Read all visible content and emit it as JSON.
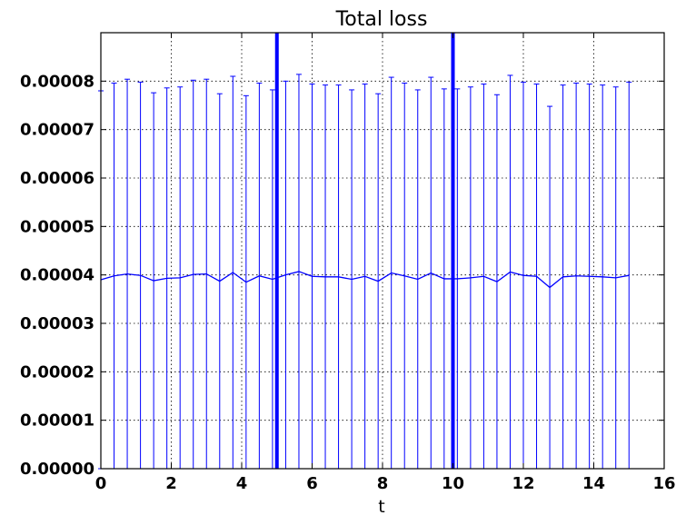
{
  "chart_data": {
    "type": "line",
    "title": "Total loss",
    "xlabel": "t",
    "ylabel": "",
    "xlim": [
      0,
      16
    ],
    "ylim": [
      0,
      9e-05
    ],
    "grid": true,
    "legend": "none",
    "x_ticks": [
      0,
      2,
      4,
      6,
      8,
      10,
      12,
      14,
      16
    ],
    "x_tick_labels": [
      "0",
      "2",
      "4",
      "6",
      "8",
      "10",
      "12",
      "14",
      "16"
    ],
    "y_ticks": [
      0,
      1e-05,
      2e-05,
      3e-05,
      4e-05,
      5e-05,
      6e-05,
      7e-05,
      8e-05
    ],
    "y_tick_labels": [
      "0.00000",
      "0.00001",
      "0.00002",
      "0.00003",
      "0.00004",
      "0.00005",
      "0.00006",
      "0.00007",
      "0.00008"
    ],
    "vertical_lines": [
      5.0,
      10.0
    ],
    "series": [
      {
        "color": "#0000ff",
        "x": [
          0.0,
          0.375,
          0.75,
          1.125,
          1.5,
          1.875,
          2.25,
          2.625,
          3.0,
          3.375,
          3.75,
          4.125,
          4.5,
          4.875,
          5.25,
          5.625,
          6.0,
          6.375,
          6.75,
          7.125,
          7.5,
          7.875,
          8.25,
          8.625,
          9.0,
          9.375,
          9.75,
          10.125,
          10.5,
          10.875,
          11.25,
          11.625,
          12.0,
          12.375,
          12.75,
          13.125,
          13.5,
          13.875,
          14.25,
          14.625,
          15.0
        ],
        "y": [
          3.9e-05,
          3.98e-05,
          4.02e-05,
          3.99e-05,
          3.88e-05,
          3.93e-05,
          3.94e-05,
          4.01e-05,
          4.02e-05,
          3.87e-05,
          4.05e-05,
          3.85e-05,
          3.98e-05,
          3.91e-05,
          4e-05,
          4.07e-05,
          3.97e-05,
          3.96e-05,
          3.96e-05,
          3.91e-05,
          3.97e-05,
          3.87e-05,
          4.04e-05,
          3.98e-05,
          3.91e-05,
          4.04e-05,
          3.92e-05,
          3.92e-05,
          3.94e-05,
          3.97e-05,
          3.86e-05,
          4.06e-05,
          3.99e-05,
          3.97e-05,
          3.74e-05,
          3.96e-05,
          3.98e-05,
          3.97e-05,
          3.96e-05,
          3.94e-05,
          3.99e-05
        ],
        "error": [
          3.9e-05,
          3.98e-05,
          4.02e-05,
          3.99e-05,
          3.88e-05,
          3.93e-05,
          3.94e-05,
          4.01e-05,
          4.02e-05,
          3.87e-05,
          4.05e-05,
          3.85e-05,
          3.98e-05,
          3.91e-05,
          4e-05,
          4.07e-05,
          3.97e-05,
          3.96e-05,
          3.96e-05,
          3.91e-05,
          3.97e-05,
          3.87e-05,
          4.04e-05,
          3.98e-05,
          3.91e-05,
          4.04e-05,
          3.92e-05,
          3.92e-05,
          3.94e-05,
          3.97e-05,
          3.86e-05,
          4.06e-05,
          3.99e-05,
          3.97e-05,
          3.74e-05,
          3.96e-05,
          3.98e-05,
          3.97e-05,
          3.96e-05,
          3.94e-05,
          3.99e-05
        ]
      }
    ]
  }
}
